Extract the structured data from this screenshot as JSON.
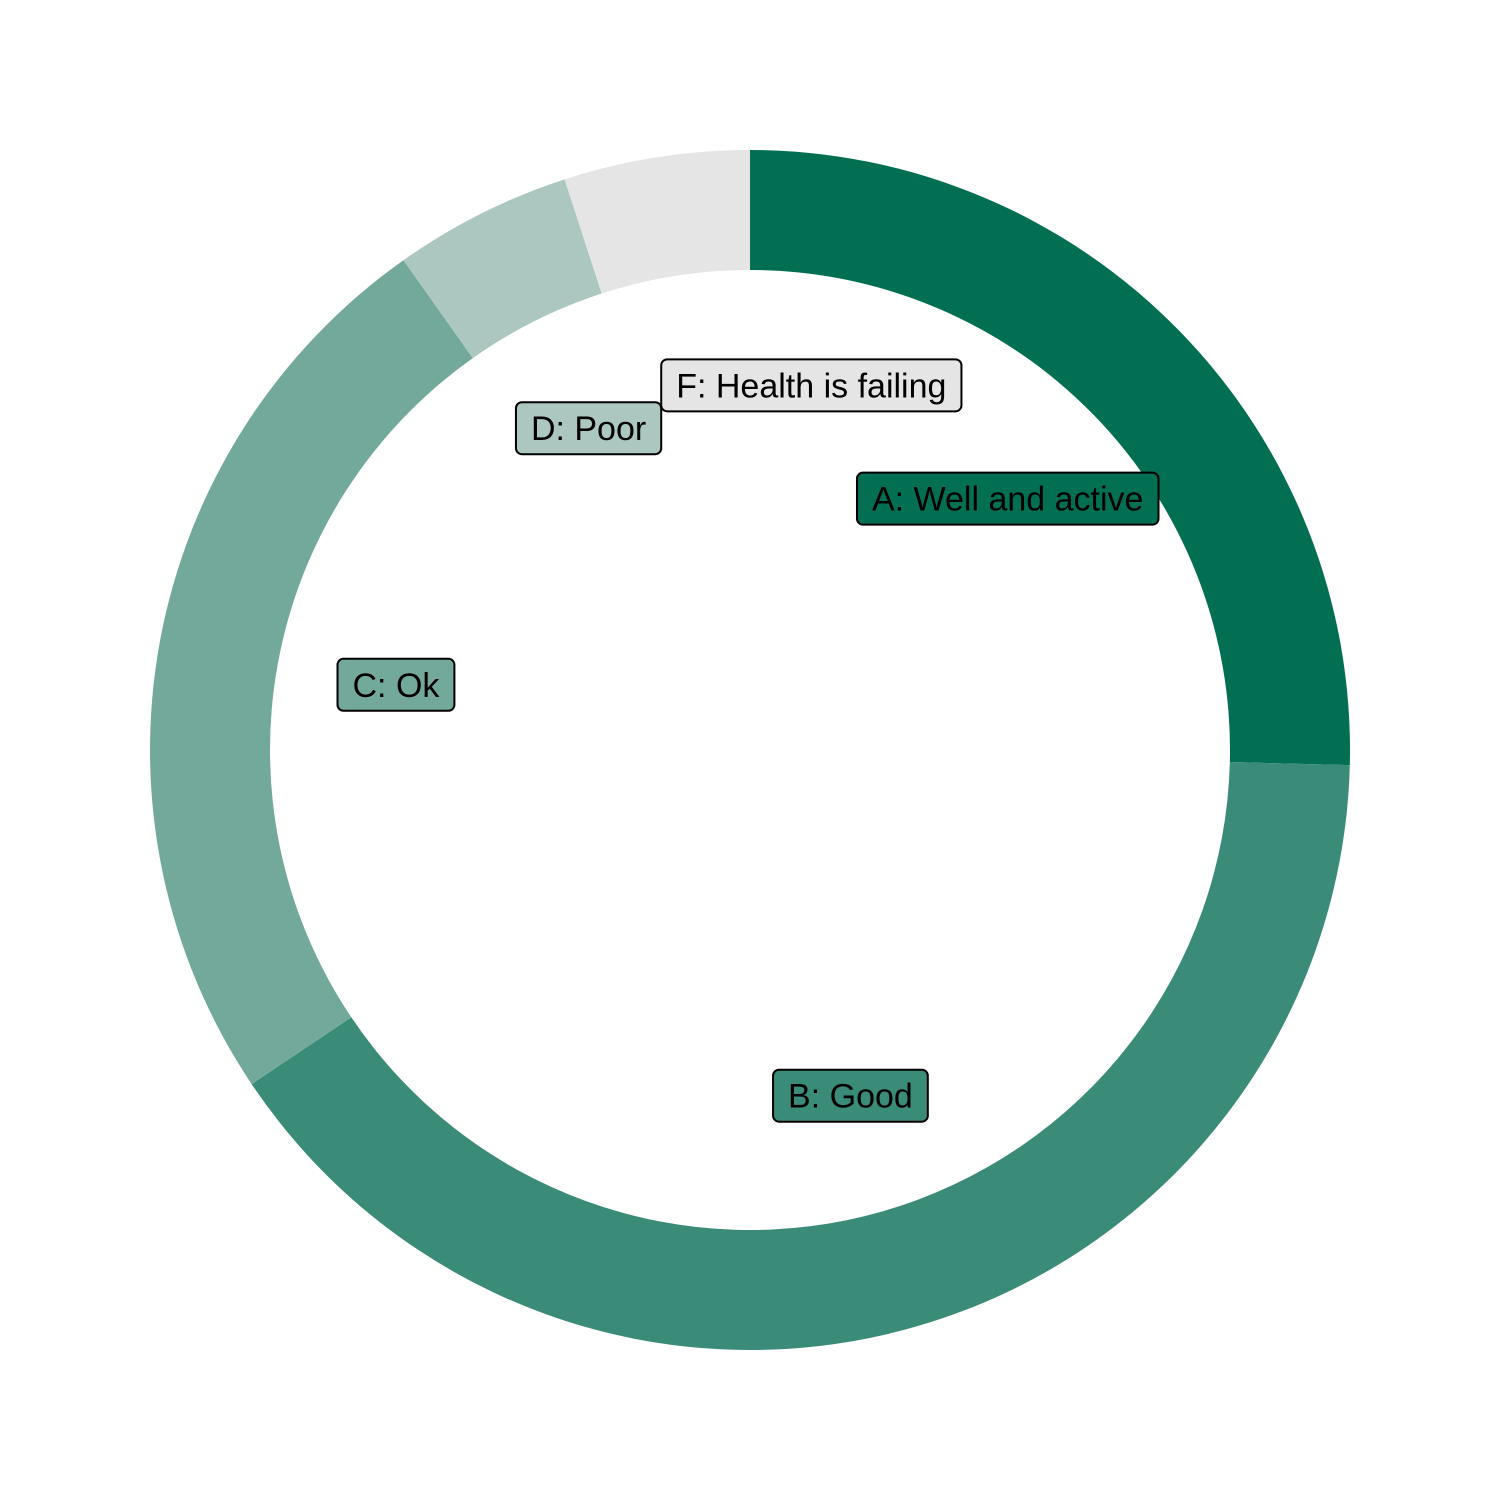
{
  "chart_data": {
    "type": "pie",
    "style": "donut",
    "title": "",
    "direction": "clockwise",
    "start": "top",
    "slices": [
      {
        "label": "A: Well and active",
        "value": 25.4,
        "color": "#036F52"
      },
      {
        "label": "B: Good",
        "value": 40.2,
        "color": "#3A8C79"
      },
      {
        "label": "C: Ok",
        "value": 24.6,
        "color": "#73A99B"
      },
      {
        "label": "D: Poor",
        "value": 4.8,
        "color": "#ABC7C0"
      },
      {
        "label": "F: Health is failing",
        "value": 5.0,
        "color": "#E5E5E5"
      }
    ],
    "legend": "none",
    "labels": "boxed"
  }
}
